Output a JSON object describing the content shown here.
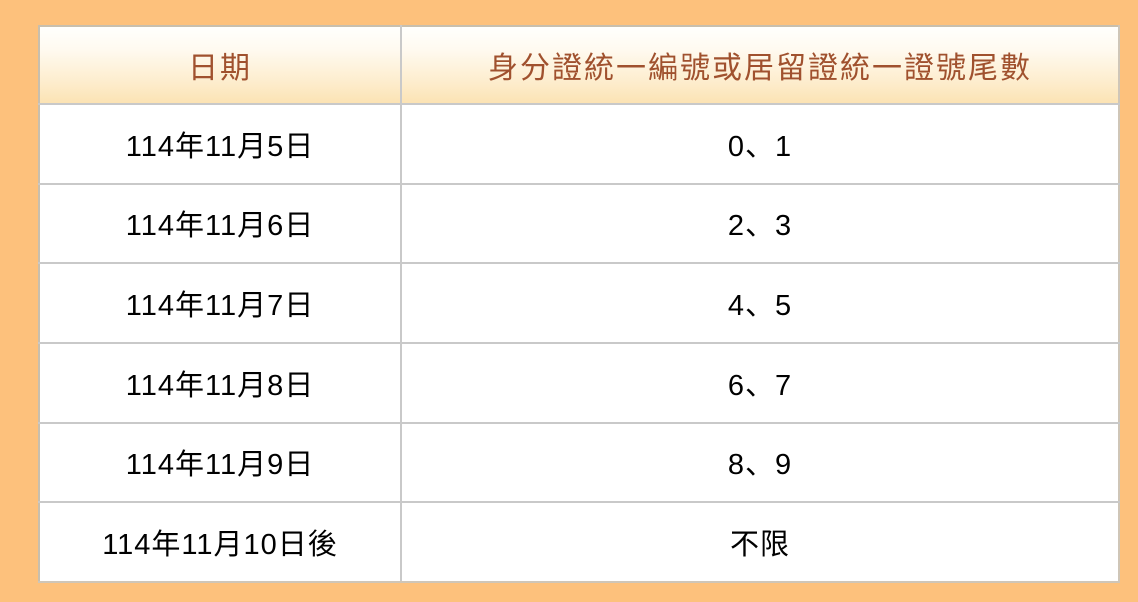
{
  "chart_data": {
    "type": "table",
    "columns": [
      "日期",
      "身分證統一編號或居留證統一證號尾數"
    ],
    "rows": [
      [
        "114年11月5日",
        "0、1"
      ],
      [
        "114年11月6日",
        "2、3"
      ],
      [
        "114年11月7日",
        "4、5"
      ],
      [
        "114年11月8日",
        "6、7"
      ],
      [
        "114年11月9日",
        "8、9"
      ],
      [
        "114年11月10日後",
        "不限"
      ]
    ],
    "layout_hints": {
      "header_position": "top",
      "grid": true,
      "column_alignment": "center"
    }
  },
  "colors": {
    "page_background": "#fdc17c",
    "header_gradient_top": "#fffffd",
    "header_gradient_bottom": "#fce3b4",
    "header_text": "#a0512e",
    "cell_background": "#ffffff",
    "cell_border": "#c9c9c9",
    "outer_border": "#c8bfae",
    "body_text": "#000000"
  }
}
